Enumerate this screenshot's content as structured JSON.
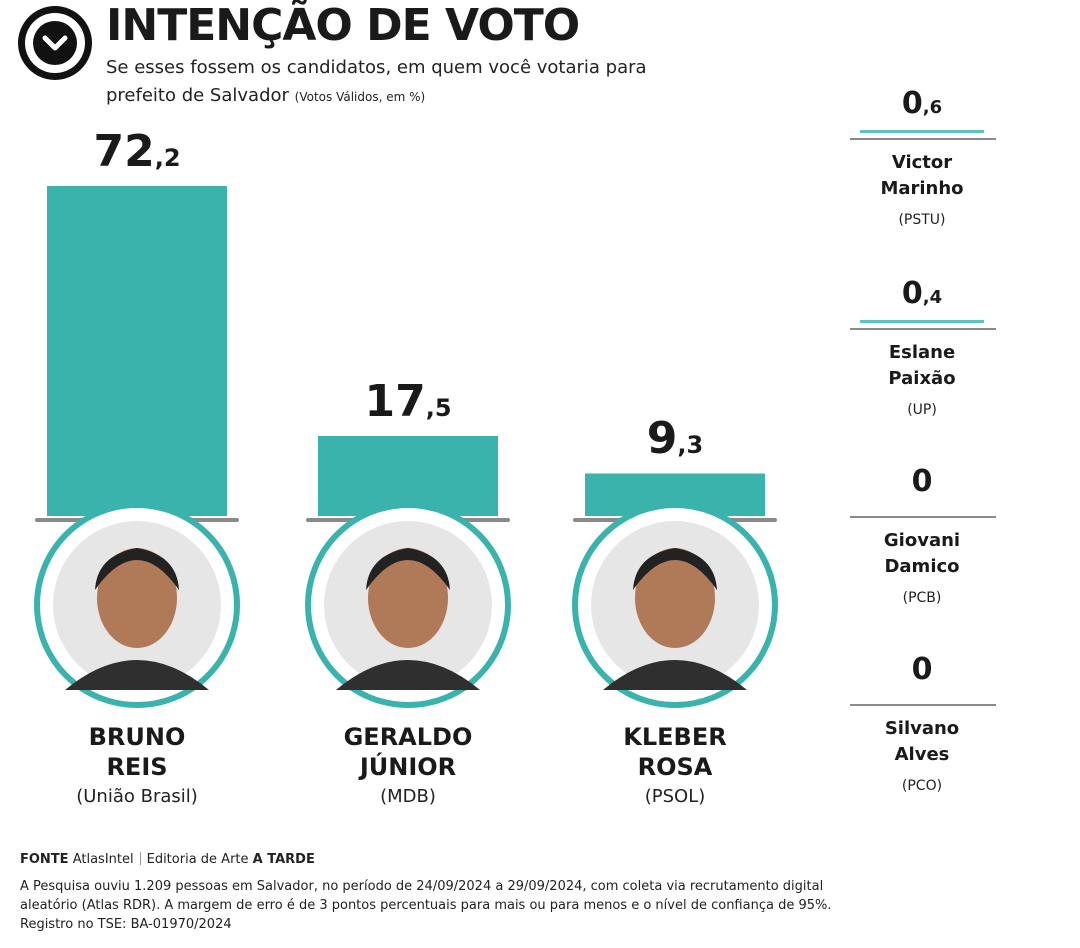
{
  "header": {
    "title": "INTENÇÃO DE VOTO",
    "subtitle_line1": "Se esses fossem os candidatos, em quem você votaria para",
    "subtitle_line2": "prefeito de Salvador",
    "subtitle_note": "(Votos Válidos, em %)"
  },
  "colors": {
    "bar": "#3bb3ad",
    "accent_line": "#5cc3bd",
    "baseline": "#8a8a8a"
  },
  "chart_data": {
    "type": "bar",
    "title": "INTENÇÃO DE VOTO",
    "categories": [
      "BRUNO REIS",
      "GERALDO JÚNIOR",
      "KLEBER ROSA",
      "Victor Marinho",
      "Eslane Paixão",
      "Giovani Damico",
      "Silvano Alves"
    ],
    "values": [
      72.2,
      17.5,
      9.3,
      0.6,
      0.4,
      0,
      0
    ],
    "main": [
      {
        "name_line1": "BRUNO",
        "name_line2": "REIS",
        "party": "(União Brasil)",
        "int": "72",
        "dec": ",2",
        "value": 72.2
      },
      {
        "name_line1": "GERALDO",
        "name_line2": "JÚNIOR",
        "party": "(MDB)",
        "int": "17",
        "dec": ",5",
        "value": 17.5
      },
      {
        "name_line1": "KLEBER",
        "name_line2": "ROSA",
        "party": "(PSOL)",
        "int": "9",
        "dec": ",3",
        "value": 9.3
      }
    ],
    "others": [
      {
        "name_line1": "Victor",
        "name_line2": "Marinho",
        "party": "(PSTU)",
        "int": "0",
        "dec": ",6",
        "value": 0.6
      },
      {
        "name_line1": "Eslane",
        "name_line2": "Paixão",
        "party": "(UP)",
        "int": "0",
        "dec": ",4",
        "value": 0.4
      },
      {
        "name_line1": "Giovani",
        "name_line2": "Damico",
        "party": "(PCB)",
        "int": "0",
        "dec": "",
        "value": 0
      },
      {
        "name_line1": "Silvano",
        "name_line2": "Alves",
        "party": "(PCO)",
        "int": "0",
        "dec": "",
        "value": 0
      }
    ],
    "ylim": [
      0,
      72.2
    ]
  },
  "footer": {
    "source_label": "FONTE",
    "source": "AtlasIntel",
    "credit_prefix": "Editoria de Arte",
    "credit_brand": "A TARDE",
    "note_line1": "A Pesquisa ouviu 1.209 pessoas em Salvador, no período de 24/09/2024 a 29/09/2024, com coleta via recrutamento digital",
    "note_line2": "aleatório (Atlas RDR). A margem de erro é de 3 pontos percentuais para mais ou para menos e o nível de confiança de 95%.",
    "note_line3": "Registro no TSE: BA-01970/2024"
  }
}
